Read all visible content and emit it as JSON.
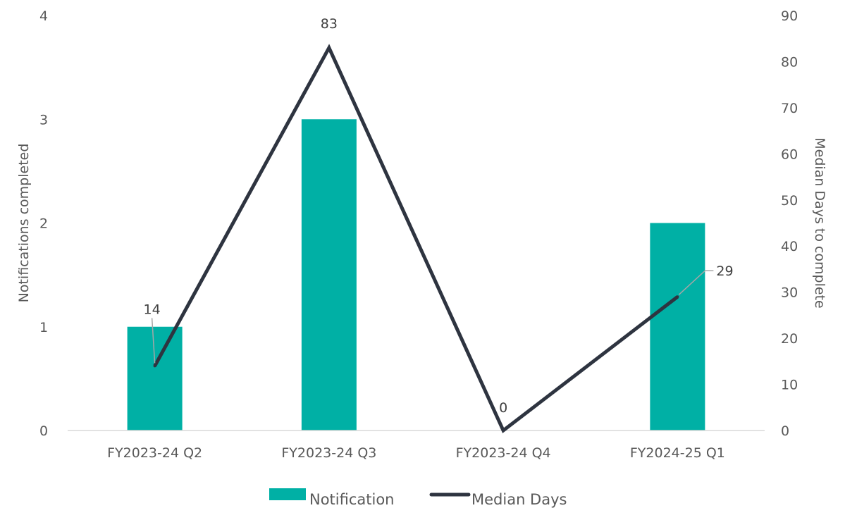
{
  "chart_data": {
    "type": "bar",
    "categories": [
      "FY2023-24 Q2",
      "FY2023-24 Q3",
      "FY2023-24 Q4",
      "FY2024-25 Q1"
    ],
    "series": [
      {
        "name": "Notification",
        "type": "bar",
        "axis": "left",
        "values": [
          1,
          3,
          0,
          2
        ],
        "color": "#00b0a5"
      },
      {
        "name": "Median Days",
        "type": "line",
        "axis": "right",
        "values": [
          14,
          83,
          0,
          29
        ],
        "color": "#2e3440"
      }
    ],
    "data_labels": {
      "Median Days": [
        "14",
        "83",
        "0",
        "29"
      ]
    },
    "y_left": {
      "label": "Notifications completed",
      "ylim": [
        0,
        4
      ],
      "ticks": [
        "0",
        "1",
        "2",
        "3",
        "4"
      ]
    },
    "y_right": {
      "label": "Median Days to complete",
      "ylim": [
        0,
        90
      ],
      "ticks": [
        "0",
        "10",
        "20",
        "30",
        "40",
        "50",
        "60",
        "70",
        "80",
        "90"
      ]
    },
    "grid": false,
    "legend": "bottom-center"
  }
}
